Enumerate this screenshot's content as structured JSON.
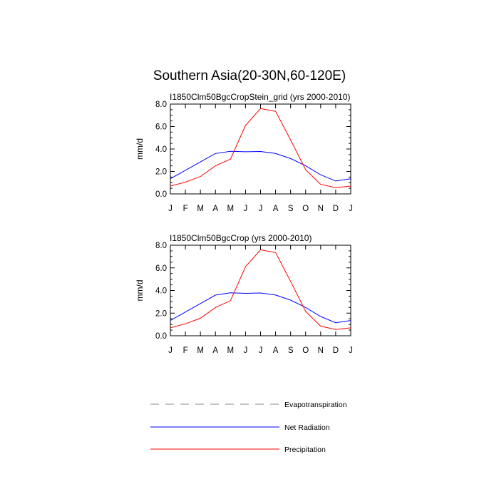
{
  "title": "Southern Asia(20-30N,60-120E)",
  "colors": {
    "evapotranspiration": "#888888",
    "net_radiation": "#0000ff",
    "precipitation": "#ff0000"
  },
  "legend": {
    "items": [
      {
        "label": "Evapotranspiration",
        "color": "#888888",
        "dash": "dashed"
      },
      {
        "label": "Net Radiation",
        "color": "#0000ff",
        "dash": "solid"
      },
      {
        "label": "Precipitation",
        "color": "#ff0000",
        "dash": "solid"
      }
    ]
  },
  "chart_data": [
    {
      "type": "line",
      "title": "I1850Clm50BgcCropStein_grid (yrs 2000-2010)",
      "xlabel": "",
      "ylabel": "mm/d",
      "ylim": [
        0,
        8
      ],
      "yticks": [
        "0.0",
        "2.0",
        "4.0",
        "6.0",
        "8.0"
      ],
      "categories": [
        "J",
        "F",
        "M",
        "A",
        "M",
        "J",
        "J",
        "A",
        "S",
        "O",
        "N",
        "D",
        "J"
      ],
      "series": [
        {
          "name": "Net Radiation",
          "values": [
            1.35,
            2.1,
            2.85,
            3.6,
            3.8,
            3.75,
            3.78,
            3.6,
            3.15,
            2.5,
            1.7,
            1.15,
            1.35
          ]
        },
        {
          "name": "Precipitation",
          "values": [
            0.7,
            1.05,
            1.55,
            2.5,
            3.1,
            6.1,
            7.6,
            7.35,
            4.8,
            2.15,
            0.85,
            0.55,
            0.7
          ]
        }
      ]
    },
    {
      "type": "line",
      "title": "I1850Clm50BgcCrop (yrs 2000-2010)",
      "xlabel": "",
      "ylabel": "mm/d",
      "ylim": [
        0,
        8
      ],
      "yticks": [
        "0.0",
        "2.0",
        "4.0",
        "6.0",
        "8.0"
      ],
      "categories": [
        "J",
        "F",
        "M",
        "A",
        "M",
        "J",
        "J",
        "A",
        "S",
        "O",
        "N",
        "D",
        "J"
      ],
      "series": [
        {
          "name": "Net Radiation",
          "values": [
            1.35,
            2.1,
            2.85,
            3.6,
            3.8,
            3.75,
            3.78,
            3.6,
            3.15,
            2.5,
            1.7,
            1.15,
            1.35
          ]
        },
        {
          "name": "Precipitation",
          "values": [
            0.7,
            1.05,
            1.55,
            2.5,
            3.1,
            6.1,
            7.6,
            7.35,
            4.8,
            2.15,
            0.85,
            0.55,
            0.7
          ]
        }
      ]
    }
  ]
}
